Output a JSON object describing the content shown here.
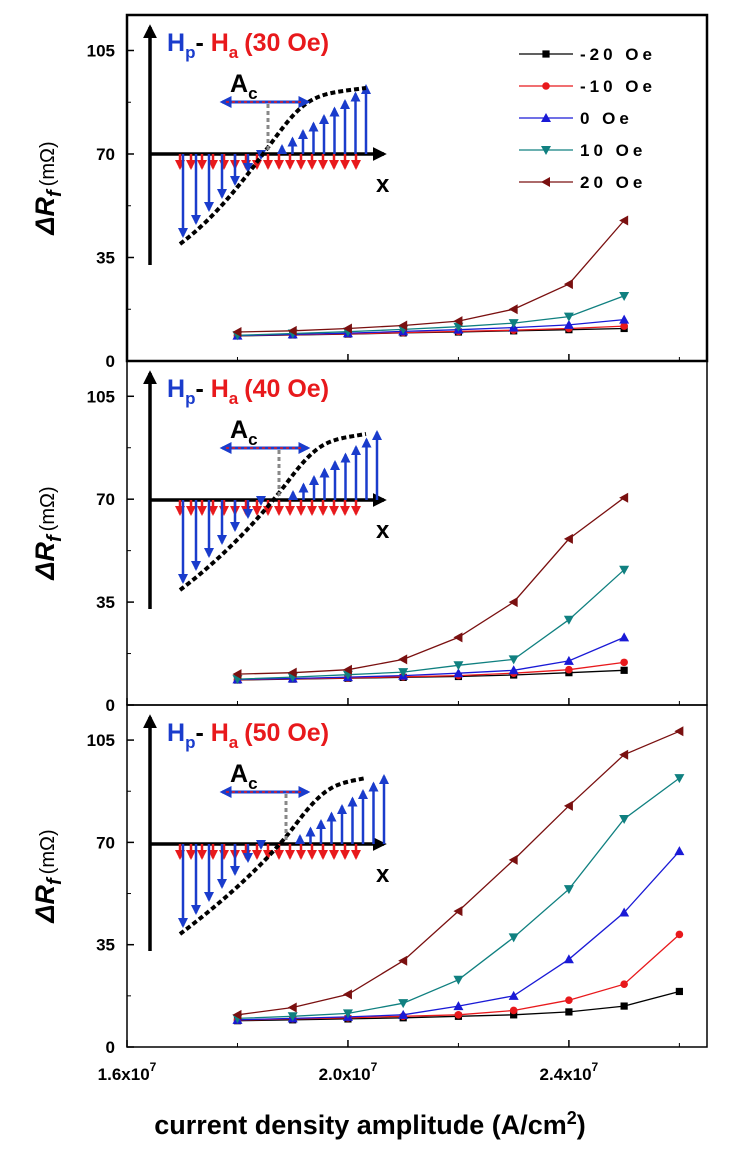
{
  "colors": {
    "-20 Oe": "#000000",
    "-10 Oe": "#e8191c",
    "0 Oe": "#1a1ad6",
    "10 Oe": "#108080",
    "20 Oe": "#7a1010",
    "inset_blue": "#1a3ccc",
    "inset_red": "#e8191c"
  },
  "chart_data": {
    "type": "line",
    "figure_xlabel_main": "current density amplitude (A/cm",
    "figure_xlabel_sup": "2",
    "figure_xlabel_close": ")",
    "xlim": [
      16000000.0,
      26500000.0
    ],
    "x_ticks": [
      {
        "value": 16000000.0,
        "mant": "1.6x10",
        "exp": "7"
      },
      {
        "value": 20000000.0,
        "mant": "2.0x10",
        "exp": "7"
      },
      {
        "value": 24000000.0,
        "mant": "2.4x10",
        "exp": "7"
      }
    ],
    "legend": [
      {
        "label": "-20 Oe",
        "marker": "square"
      },
      {
        "label": "-10 Oe",
        "marker": "circle"
      },
      {
        "label": "0 Oe",
        "marker": "triangle-up"
      },
      {
        "label": "10 Oe",
        "marker": "triangle-down"
      },
      {
        "label": "20 Oe",
        "marker": "triangle-left"
      }
    ],
    "panels": [
      {
        "inset_title": {
          "hp": "H",
          "hp_sub": "p",
          "dash": "- ",
          "ha": "H",
          "ha_sub": "a",
          "field": "(30 Oe)"
        },
        "ylabel": {
          "delta": "Δ",
          "r": "R",
          "sub": "f",
          "unit": "(mΩ)"
        },
        "ylim": [
          0,
          117
        ],
        "y_ticks": [
          "0",
          "35",
          "70",
          "105"
        ],
        "inset_ac": {
          "a": "A",
          "c": "c"
        },
        "inset_x": "x",
        "x": [
          18000000.0,
          19000000.0,
          20000000.0,
          21000000.0,
          22000000.0,
          23000000.0,
          24000000.0,
          25000000.0
        ],
        "series": [
          {
            "name": "-20 Oe",
            "values": [
              8.5,
              8.8,
              9.1,
              9.5,
              9.8,
              10.2,
              10.6,
              11.0
            ]
          },
          {
            "name": "-10 Oe",
            "values": [
              8.6,
              8.9,
              9.2,
              9.6,
              10.0,
              10.4,
              11.0,
              11.8
            ]
          },
          {
            "name": "0 Oe",
            "values": [
              8.6,
              9.0,
              9.4,
              10.0,
              10.6,
              11.3,
              12.2,
              14.0
            ]
          },
          {
            "name": "10 Oe",
            "values": [
              8.7,
              9.3,
              9.9,
              10.7,
              11.6,
              12.8,
              15.0,
              22.0
            ]
          },
          {
            "name": "20 Oe",
            "values": [
              9.8,
              10.2,
              11.0,
              12.0,
              13.5,
              17.5,
              26.0,
              47.5
            ]
          }
        ]
      },
      {
        "inset_title": {
          "hp": "H",
          "hp_sub": "p",
          "dash": "- ",
          "ha": "H",
          "ha_sub": "a",
          "field": "(40 Oe)"
        },
        "ylabel": {
          "delta": "Δ",
          "r": "R",
          "sub": "f",
          "unit": "(mΩ)"
        },
        "ylim": [
          0,
          117
        ],
        "y_ticks": [
          "0",
          "35",
          "70",
          "105"
        ],
        "inset_ac": {
          "a": "A",
          "c": "c"
        },
        "inset_x": "x",
        "x": [
          18000000.0,
          19000000.0,
          20000000.0,
          21000000.0,
          22000000.0,
          23000000.0,
          24000000.0,
          25000000.0
        ],
        "series": [
          {
            "name": "-20 Oe",
            "values": [
              8.5,
              8.8,
              9.1,
              9.4,
              9.7,
              10.2,
              11.0,
              11.8
            ]
          },
          {
            "name": "-10 Oe",
            "values": [
              8.6,
              8.9,
              9.2,
              9.6,
              10.0,
              10.8,
              12.0,
              14.5
            ]
          },
          {
            "name": "0 Oe",
            "values": [
              8.7,
              9.0,
              9.5,
              10.0,
              10.8,
              11.8,
              15.0,
              23.0
            ]
          },
          {
            "name": "10 Oe",
            "values": [
              8.8,
              9.5,
              10.3,
              11.2,
              13.5,
              15.5,
              29.0,
              46.0
            ]
          },
          {
            "name": "20 Oe",
            "values": [
              10.5,
              11.0,
              12.0,
              15.5,
              23.0,
              35.0,
              56.5,
              70.5
            ]
          }
        ]
      },
      {
        "inset_title": {
          "hp": "H",
          "hp_sub": "p",
          "dash": "- ",
          "ha": "H",
          "ha_sub": "a",
          "field": "(50 Oe)"
        },
        "ylabel": {
          "delta": "Δ",
          "r": "R",
          "sub": "f",
          "unit": "(mΩ)"
        },
        "ylim": [
          0,
          117
        ],
        "y_ticks": [
          "0",
          "35",
          "70",
          "105"
        ],
        "inset_ac": {
          "a": "A",
          "c": "c"
        },
        "inset_x": "x",
        "x": [
          18000000.0,
          19000000.0,
          20000000.0,
          21000000.0,
          22000000.0,
          23000000.0,
          24000000.0,
          25000000.0,
          26000000.0
        ],
        "series": [
          {
            "name": "-20 Oe",
            "values": [
              9.0,
              9.3,
              9.6,
              10.0,
              10.5,
              11.0,
              12.0,
              14.0,
              19.0
            ]
          },
          {
            "name": "-10 Oe",
            "values": [
              9.2,
              9.6,
              10.0,
              10.5,
              11.0,
              12.5,
              16.0,
              21.5,
              38.5
            ]
          },
          {
            "name": "0 Oe",
            "values": [
              9.3,
              9.8,
              10.3,
              11.0,
              14.0,
              17.5,
              30.0,
              46.0,
              67.0
            ]
          },
          {
            "name": "10 Oe",
            "values": [
              9.8,
              10.5,
              11.5,
              15.0,
              23.0,
              37.5,
              54.0,
              78.0,
              92.0
            ]
          },
          {
            "name": "20 Oe",
            "values": [
              11.0,
              13.5,
              18.0,
              29.5,
              46.5,
              64.0,
              82.5,
              100.0,
              108.0
            ]
          }
        ]
      }
    ]
  }
}
